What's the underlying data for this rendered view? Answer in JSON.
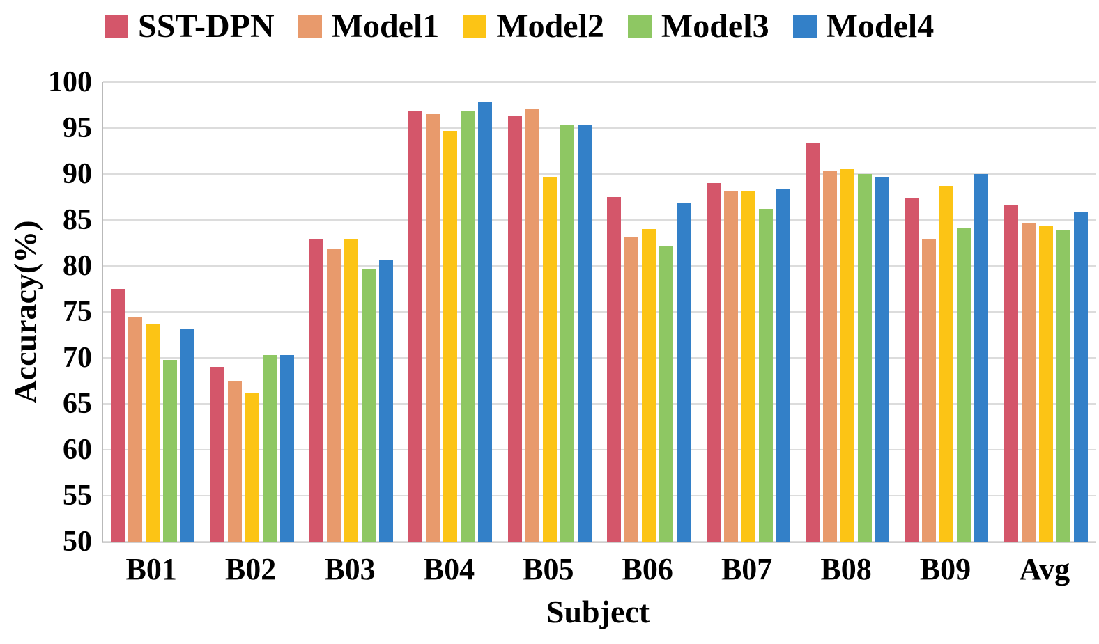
{
  "chart_data": {
    "type": "bar",
    "title": "",
    "xlabel": "Subject",
    "ylabel": "Accuracy(%)",
    "ylim": [
      50,
      100
    ],
    "yticks": [
      100,
      95,
      90,
      85,
      80,
      75,
      70,
      65,
      60,
      55,
      50
    ],
    "grid": "horizontal",
    "legend_position": "top",
    "categories": [
      "B01",
      "B02",
      "B03",
      "B04",
      "B05",
      "B06",
      "B07",
      "B08",
      "B09",
      "Avg"
    ],
    "series": [
      {
        "name": "SST-DPN",
        "color": "#D4566A",
        "values": [
          77.5,
          69.0,
          82.9,
          96.9,
          96.3,
          87.5,
          89.0,
          93.4,
          87.4,
          86.7
        ]
      },
      {
        "name": "Model1",
        "color": "#E89A6C",
        "values": [
          74.4,
          67.5,
          81.9,
          96.5,
          97.1,
          83.1,
          88.1,
          90.3,
          82.9,
          84.6
        ]
      },
      {
        "name": "Model2",
        "color": "#FCC415",
        "values": [
          73.7,
          66.1,
          82.9,
          94.7,
          89.7,
          84.0,
          88.1,
          90.5,
          88.7,
          84.3
        ]
      },
      {
        "name": "Model3",
        "color": "#8EC763",
        "values": [
          69.8,
          70.3,
          79.7,
          96.9,
          95.3,
          82.2,
          86.2,
          90.0,
          84.1,
          83.9
        ]
      },
      {
        "name": "Model4",
        "color": "#3380C8",
        "values": [
          73.1,
          70.3,
          80.6,
          97.8,
          95.3,
          86.9,
          88.4,
          89.7,
          90.0,
          85.8
        ]
      }
    ],
    "colors": {
      "background": "#FFFFFF",
      "gridline": "#DCDCDC",
      "axis_line": "#BFBFBF",
      "text": "#000000"
    }
  }
}
